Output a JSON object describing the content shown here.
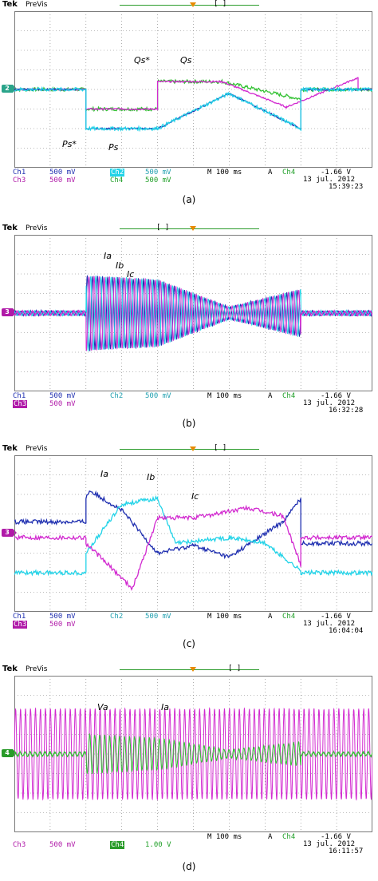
{
  "colors": {
    "ch1": "#1f2fb0",
    "ch2": "#22d3e8",
    "ch3": "#d22ad0",
    "ch4": "#33c233",
    "grid": "#7a7a7a",
    "trigger": "#e88a00"
  },
  "panels": [
    {
      "caption": "(a)",
      "tek": "Tek",
      "previs": "PreVis",
      "brackets": "[ ]",
      "marker": "2",
      "status": {
        "row1": {
          "a": "Ch1",
          "av": "500 mV",
          "b": "Ch2",
          "bv": "500 mV",
          "tb": "M 100 ms",
          "tr": "A",
          "trc": "Ch4",
          "trv": "-1.66 V"
        },
        "row2": {
          "a": "Ch3",
          "av": "500 mV",
          "b": "Ch4",
          "bv": "500 mV"
        },
        "date": "13 jul. 2012",
        "time": "15:39:23"
      },
      "annotations": [
        "Qs*",
        "Qs",
        "Ps*",
        "Ps"
      ]
    },
    {
      "caption": "(b)",
      "tek": "Tek",
      "previs": "PreVis",
      "brackets": "[ ]",
      "marker": "3",
      "status": {
        "row1": {
          "a": "Ch1",
          "av": "500 mV",
          "b": "Ch2",
          "bv": "500 mV",
          "tb": "M 100 ms",
          "tr": "A",
          "trc": "Ch4",
          "trv": "-1.66 V"
        },
        "row2": {
          "a": "Ch3",
          "av": "500 mV",
          "b": "",
          "bv": ""
        },
        "date": "13 jul. 2012",
        "time": "16:32:28"
      },
      "annotations": [
        "Ia",
        "Ib",
        "Ic"
      ]
    },
    {
      "caption": "(c)",
      "tek": "Tek",
      "previs": "PreVis",
      "brackets": "[ ]",
      "marker": "3",
      "status": {
        "row1": {
          "a": "Ch1",
          "av": "500 mV",
          "b": "Ch2",
          "bv": "500 mV",
          "tb": "M 100 ms",
          "tr": "A",
          "trc": "Ch4",
          "trv": "-1.66 V"
        },
        "row2": {
          "a": "Ch3",
          "av": "500 mV",
          "b": "",
          "bv": ""
        },
        "date": "13 jul. 2012",
        "time": "16:04:04"
      },
      "annotations": [
        "Ia",
        "Ib",
        "Ic"
      ]
    },
    {
      "caption": "(d)",
      "tek": "Tek",
      "previs": "PreVis",
      "brackets": "[ ]",
      "marker": "4",
      "status": {
        "row1": {
          "a": "",
          "av": "",
          "b": "",
          "bv": "",
          "tb": "M 100 ms",
          "tr": "A",
          "trc": "Ch4",
          "trv": "-1.66 V"
        },
        "row2": {
          "a": "Ch3",
          "av": "500 mV",
          "b": "Ch4",
          "bv": "1.00 V"
        },
        "date": "13 jul. 2012",
        "time": "16:11:57"
      },
      "annotations": [
        "Va",
        "Ia"
      ]
    }
  ],
  "chart_data": [
    {
      "type": "line",
      "title": "(a)",
      "x_unit": "divisions (100 ms/div)",
      "xlim": [
        0,
        10
      ],
      "ylim": [
        -4,
        4
      ],
      "grid": true,
      "series": [
        {
          "name": "Qs*",
          "channel": "Ch4",
          "x": [
            0,
            2,
            2,
            4,
            4,
            5.8,
            8,
            8,
            10
          ],
          "y": [
            0,
            0,
            -1,
            -1,
            0.4,
            0.4,
            -0.5,
            0,
            0
          ]
        },
        {
          "name": "Qs",
          "channel": "Ch3",
          "x": [
            0,
            2,
            2,
            4,
            4,
            5.8,
            7.6,
            9.6,
            9.6,
            10
          ],
          "y": [
            0,
            0,
            -1,
            -1,
            0.4,
            0.4,
            -0.9,
            0.6,
            0,
            0
          ]
        },
        {
          "name": "Ps*",
          "channel": "Ch1",
          "x": [
            0,
            2,
            2,
            4,
            6,
            8,
            8,
            10
          ],
          "y": [
            0,
            0,
            -2,
            -2,
            -0.2,
            -2,
            0,
            0
          ]
        },
        {
          "name": "Ps",
          "channel": "Ch2",
          "x": [
            0,
            2,
            2,
            4,
            6,
            8,
            8,
            10
          ],
          "y": [
            0,
            0,
            -2,
            -2,
            -0.2,
            -2,
            0,
            0
          ]
        }
      ]
    },
    {
      "type": "line",
      "title": "(b)",
      "x_unit": "divisions (100 ms/div)",
      "xlim": [
        0,
        10
      ],
      "ylim": [
        -4,
        4
      ],
      "grid": true,
      "series": [
        {
          "name": "Ia",
          "channel": "Ch1",
          "envelope_x": [
            0,
            2,
            2,
            4,
            6,
            8,
            8,
            10
          ],
          "envelope_y": [
            0.1,
            0.1,
            1.9,
            1.7,
            0.3,
            1.2,
            0.1,
            0.1
          ]
        },
        {
          "name": "Ib",
          "channel": "Ch2",
          "envelope_x": [
            0,
            2,
            2,
            4,
            6,
            8,
            8,
            10
          ],
          "envelope_y": [
            0.1,
            0.1,
            1.9,
            1.7,
            0.3,
            1.2,
            0.1,
            0.1
          ]
        },
        {
          "name": "Ic",
          "channel": "Ch3",
          "envelope_x": [
            0,
            2,
            2,
            4,
            6,
            8,
            8,
            10
          ],
          "envelope_y": [
            0.1,
            0.1,
            1.9,
            1.7,
            0.3,
            1.2,
            0.1,
            0.1
          ]
        }
      ]
    },
    {
      "type": "line",
      "title": "(c)",
      "x_unit": "divisions (100 ms/div)",
      "xlim": [
        0,
        10
      ],
      "ylim": [
        -4,
        4
      ],
      "grid": true,
      "series": [
        {
          "name": "Ia",
          "channel": "Ch1",
          "x": [
            0,
            2,
            2,
            2.1,
            3,
            4,
            5,
            6,
            7.5,
            8,
            8,
            10
          ],
          "y": [
            0.6,
            0.6,
            1.8,
            2.2,
            1.2,
            -1,
            -0.6,
            -1.2,
            0.6,
            1.8,
            -0.5,
            -0.5
          ]
        },
        {
          "name": "Ib",
          "channel": "Ch2",
          "x": [
            0,
            2,
            2,
            3,
            4,
            4.5,
            6,
            7,
            8,
            8,
            10
          ],
          "y": [
            -2,
            -2,
            -1,
            1.5,
            1.8,
            -0.5,
            -0.2,
            -0.5,
            -1.9,
            -2,
            -2
          ]
        },
        {
          "name": "Ic",
          "channel": "Ch3",
          "x": [
            0,
            2,
            2,
            3.3,
            4,
            5,
            6.5,
            7.5,
            8,
            8,
            10
          ],
          "y": [
            -0.2,
            -0.2,
            -0.5,
            -2.8,
            0.8,
            0.8,
            1.3,
            0.9,
            -1.6,
            -0.2,
            -0.2
          ]
        }
      ]
    },
    {
      "type": "line",
      "title": "(d)",
      "x_unit": "divisions (100 ms/div)",
      "xlim": [
        0,
        10
      ],
      "ylim": [
        -4,
        4
      ],
      "grid": true,
      "series": [
        {
          "name": "Va",
          "channel": "Ch3",
          "amplitude": 2.3,
          "cycles": 72
        },
        {
          "name": "Ia",
          "channel": "Ch4",
          "envelope_x": [
            0,
            2,
            2,
            4,
            6,
            8,
            8,
            10
          ],
          "envelope_y": [
            0.1,
            0.1,
            1.0,
            0.8,
            0.2,
            0.6,
            0.1,
            0.1
          ]
        }
      ]
    }
  ]
}
